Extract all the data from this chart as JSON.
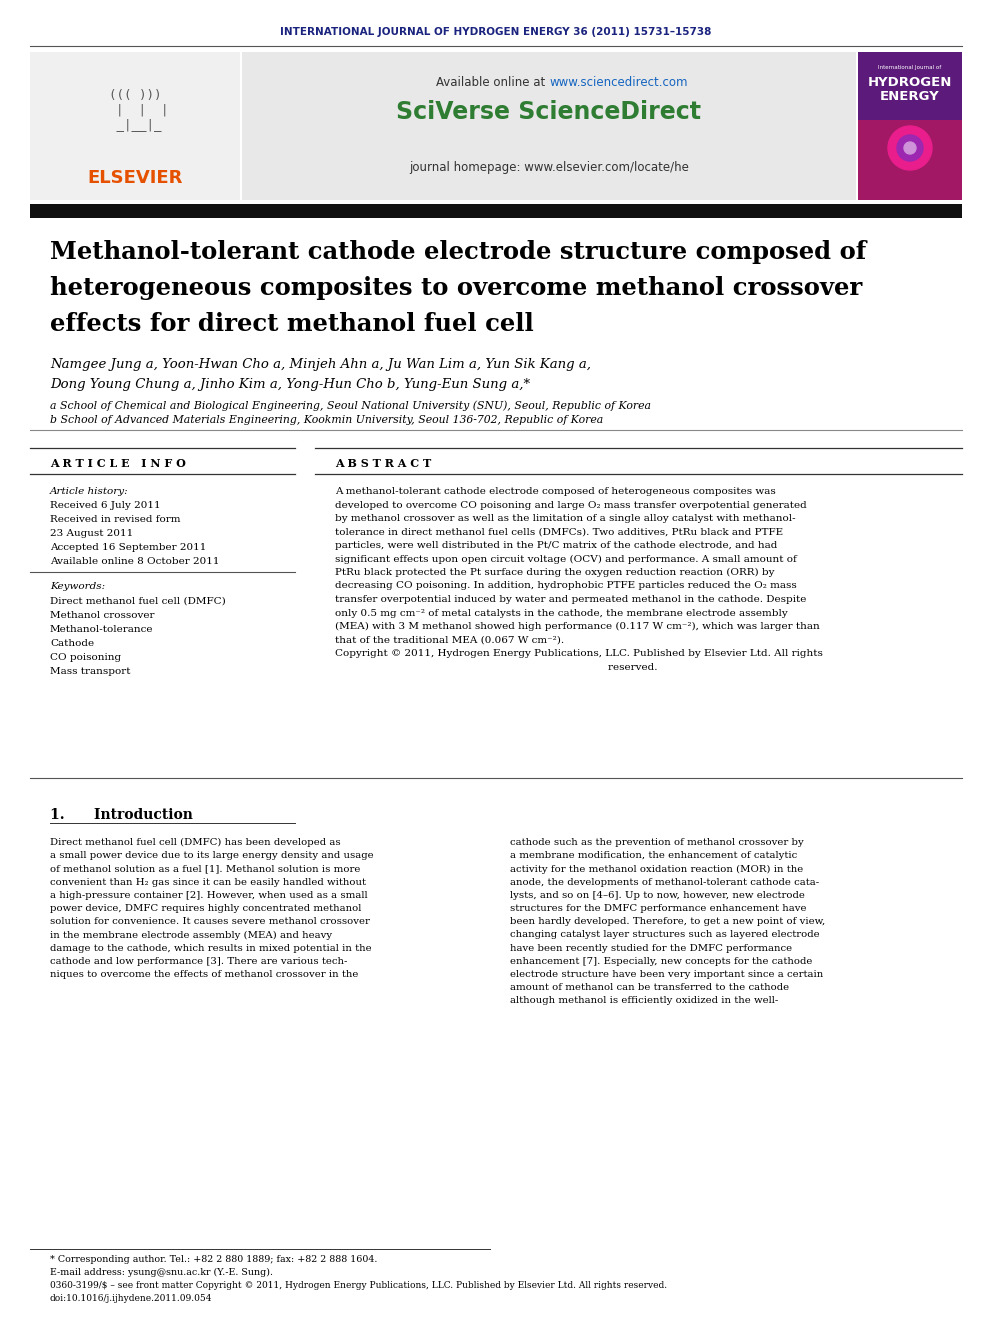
{
  "journal_header": "INTERNATIONAL JOURNAL OF HYDROGEN ENERGY 36 (2011) 15731–15738",
  "journal_header_color": "#1a237e",
  "sciverse_color": "#2e7d32",
  "elsevier_color": "#e65100",
  "paper_title_line1": "Methanol-tolerant cathode electrode structure composed of",
  "paper_title_line2": "heterogeneous composites to overcome methanol crossover",
  "paper_title_line3": "effects for direct methanol fuel cell",
  "authors_line1": "Namgee Jung a, Yoon-Hwan Cho a, Minjeh Ahn a, Ju Wan Lim a, Yun Sik Kang a,",
  "authors_line2": "Dong Young Chung a, Jinho Kim a, Yong-Hun Cho b, Yung-Eun Sung a,*",
  "affiliation_a": "a School of Chemical and Biological Engineering, Seoul National University (SNU), Seoul, Republic of Korea",
  "affiliation_b": "b School of Advanced Materials Engineering, Kookmin University, Seoul 136-702, Republic of Korea",
  "article_info_label": "A R T I C L E   I N F O",
  "article_history_label": "Article history:",
  "received_1": "Received 6 July 2011",
  "received_2": "Received in revised form",
  "received_2b": "23 August 2011",
  "accepted": "Accepted 16 September 2011",
  "available_online": "Available online 8 October 2011",
  "keywords_label": "Keywords:",
  "keyword_1": "Direct methanol fuel cell (DMFC)",
  "keyword_2": "Methanol crossover",
  "keyword_3": "Methanol-tolerance",
  "keyword_4": "Cathode",
  "keyword_5": "CO poisoning",
  "keyword_6": "Mass transport",
  "abstract_label": "A B S T R A C T",
  "abstract_lines": [
    "A methanol-tolerant cathode electrode composed of heterogeneous composites was",
    "developed to overcome CO poisoning and large O₂ mass transfer overpotential generated",
    "by methanol crossover as well as the limitation of a single alloy catalyst with methanol-",
    "tolerance in direct methanol fuel cells (DMFCs). Two additives, PtRu black and PTFE",
    "particles, were well distributed in the Pt/C matrix of the cathode electrode, and had",
    "significant effects upon open circuit voltage (OCV) and performance. A small amount of",
    "PtRu black protected the Pt surface during the oxygen reduction reaction (ORR) by",
    "decreasing CO poisoning. In addition, hydrophobic PTFE particles reduced the O₂ mass",
    "transfer overpotential induced by water and permeated methanol in the cathode. Despite",
    "only 0.5 mg cm⁻² of metal catalysts in the cathode, the membrane electrode assembly",
    "(MEA) with 3 M methanol showed high performance (0.117 W cm⁻²), which was larger than",
    "that of the traditional MEA (0.067 W cm⁻²).",
    "Copyright © 2011, Hydrogen Energy Publications, LLC. Published by Elsevier Ltd. All rights",
    "                                                                                    reserved."
  ],
  "intro_header": "1.      Introduction",
  "intro_col1_lines": [
    "Direct methanol fuel cell (DMFC) has been developed as",
    "a small power device due to its large energy density and usage",
    "of methanol solution as a fuel [1]. Methanol solution is more",
    "convenient than H₂ gas since it can be easily handled without",
    "a high-pressure container [2]. However, when used as a small",
    "power device, DMFC requires highly concentrated methanol",
    "solution for convenience. It causes severe methanol crossover",
    "in the membrane electrode assembly (MEA) and heavy",
    "damage to the cathode, which results in mixed potential in the",
    "cathode and low performance [3]. There are various tech-",
    "niques to overcome the effects of methanol crossover in the"
  ],
  "intro_col2_lines": [
    "cathode such as the prevention of methanol crossover by",
    "a membrane modification, the enhancement of catalytic",
    "activity for the methanol oxidation reaction (MOR) in the",
    "anode, the developments of methanol-tolerant cathode cata-",
    "lysts, and so on [4–6]. Up to now, however, new electrode",
    "structures for the DMFC performance enhancement have",
    "been hardly developed. Therefore, to get a new point of view,",
    "changing catalyst layer structures such as layered electrode",
    "have been recently studied for the DMFC performance",
    "enhancement [7]. Especially, new concepts for the cathode",
    "electrode structure have been very important since a certain",
    "amount of methanol can be transferred to the cathode",
    "although methanol is efficiently oxidized in the well-"
  ],
  "footnote_1": "* Corresponding author. Tel.: +82 2 880 1889; fax: +82 2 888 1604.",
  "footnote_2": "E-mail address: ysung@snu.ac.kr (Y.-E. Sung).",
  "footnote_3": "0360-3199/$ – see front matter Copyright © 2011, Hydrogen Energy Publications, LLC. Published by Elsevier Ltd. All rights reserved.",
  "footnote_4": "doi:10.1016/j.ijhydene.2011.09.054",
  "bg_color": "#ffffff",
  "gray_box_color": "#e8e8e8",
  "available_online_plain": "Available online at ",
  "available_online_link": "www.sciencedirect.com",
  "sciverse_text": "SciVerse ScienceDirect",
  "journal_homepage": "journal homepage: www.elsevier.com/locate/he",
  "hydrogen_energy_line1": "International Journal of",
  "hydrogen_energy_line2": "HYDROGEN",
  "hydrogen_energy_line3": "ENERGY"
}
